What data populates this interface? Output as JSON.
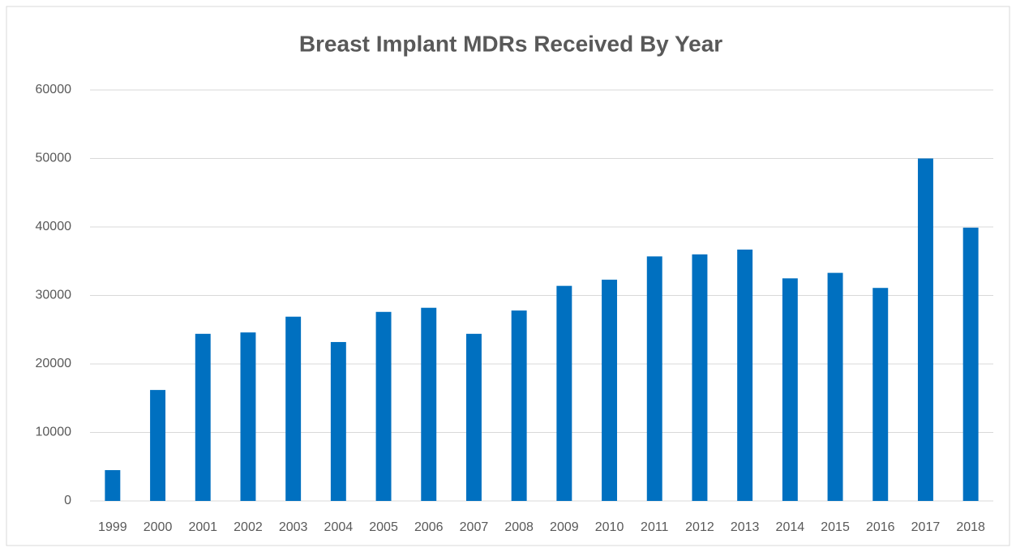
{
  "chart_data": {
    "type": "bar",
    "title": "Breast Implant MDRs Received By Year",
    "categories": [
      "1999",
      "2000",
      "2001",
      "2002",
      "2003",
      "2004",
      "2005",
      "2006",
      "2007",
      "2008",
      "2009",
      "2010",
      "2011",
      "2012",
      "2013",
      "2014",
      "2015",
      "2016",
      "2017",
      "2018"
    ],
    "values": [
      4500,
      16200,
      24400,
      24600,
      26900,
      23200,
      27600,
      28200,
      24400,
      27800,
      31400,
      32300,
      35700,
      36000,
      36700,
      32500,
      33300,
      31100,
      50000,
      39900
    ],
    "color": "#0070c0",
    "ylim": [
      0,
      60000
    ],
    "yticks": [
      0,
      10000,
      20000,
      30000,
      40000,
      50000,
      60000
    ],
    "grid": true
  }
}
